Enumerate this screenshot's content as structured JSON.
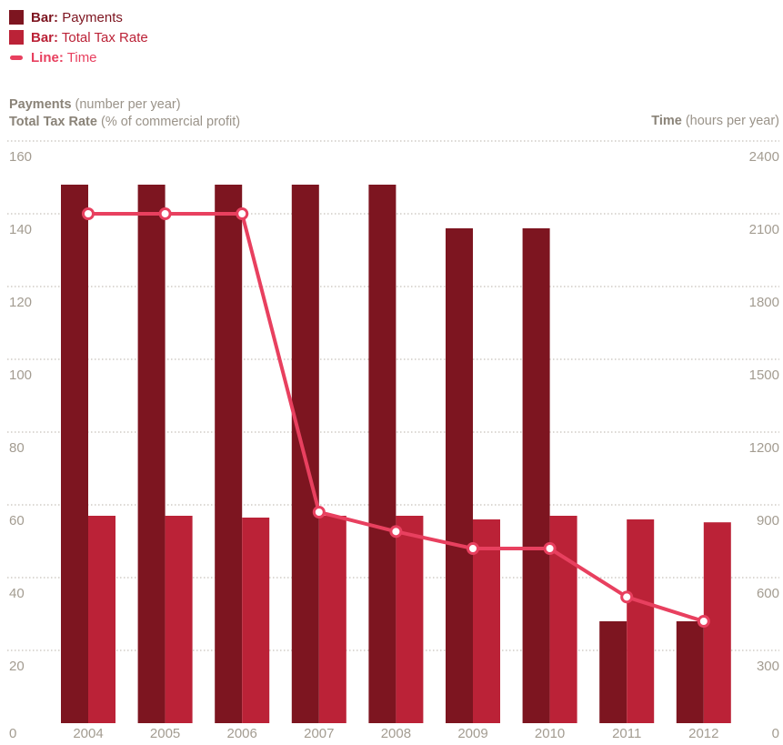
{
  "legend": [
    {
      "prefix": "Bar:",
      "label": "Payments",
      "color": "#7d1520",
      "kind": "bar"
    },
    {
      "prefix": "Bar:",
      "label": "Total Tax Rate",
      "color": "#bb2237",
      "kind": "bar"
    },
    {
      "prefix": "Line:",
      "label": "Time",
      "color": "#e8405f",
      "kind": "line"
    }
  ],
  "axis_titles": {
    "left_1_bold": "Payments",
    "left_1_rest": " (number per year)",
    "left_2_bold": "Total Tax Rate",
    "left_2_rest": " (% of commercial profit)",
    "right_bold": "Time",
    "right_rest": " (hours per year)"
  },
  "chart_data": {
    "type": "bar",
    "categories": [
      "2004",
      "2005",
      "2006",
      "2007",
      "2008",
      "2009",
      "2010",
      "2011",
      "2012"
    ],
    "series": [
      {
        "name": "Payments",
        "kind": "bar",
        "axis": "left",
        "color": "#7d1520",
        "values": [
          148,
          148,
          148,
          148,
          148,
          136,
          136,
          28,
          28
        ]
      },
      {
        "name": "Total Tax Rate",
        "kind": "bar",
        "axis": "left",
        "color": "#bb2237",
        "values": [
          57,
          57,
          56.5,
          57,
          57,
          56,
          57,
          56,
          55.2
        ]
      },
      {
        "name": "Time",
        "kind": "line",
        "axis": "right",
        "color": "#e8405f",
        "values": [
          2100,
          2100,
          2100,
          870,
          790,
          720,
          720,
          520,
          420
        ]
      }
    ],
    "left_ticks": [
      "0",
      "20",
      "40",
      "60",
      "80",
      "100",
      "120",
      "140",
      "160"
    ],
    "right_ticks": [
      "0",
      "300",
      "600",
      "900",
      "1200",
      "1500",
      "1800",
      "2100",
      "2400"
    ],
    "ylim_left": [
      0,
      160
    ],
    "ylim_right": [
      0,
      2400
    ],
    "grid": true,
    "legend_position": "top-left"
  }
}
